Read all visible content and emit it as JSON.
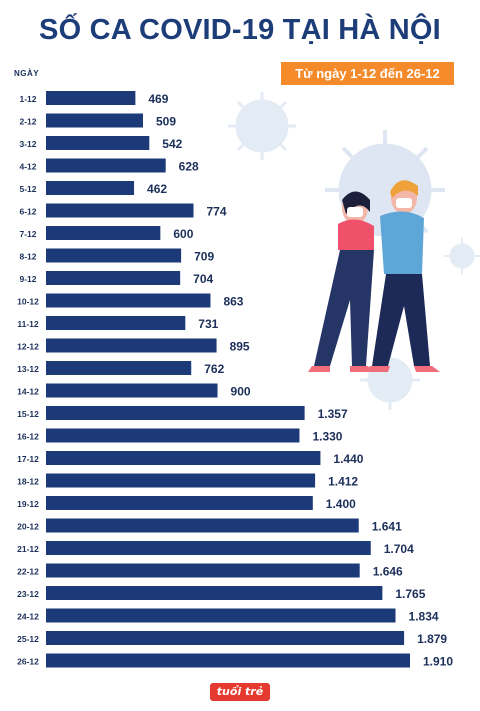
{
  "title": "SỐ CA COVID-19 TẠI HÀ NỘI",
  "badge": "Từ ngày 1-12 đến 26-12",
  "logo": "tuổi trẻ",
  "colors": {
    "bar": "#1d3a78",
    "label": "#1b2f5a",
    "accent": "#f48a2a"
  },
  "chart_data": {
    "type": "bar",
    "orientation": "horizontal",
    "ylabel": "NGÀY",
    "categories": [
      "1-12",
      "2-12",
      "3-12",
      "4-12",
      "5-12",
      "6-12",
      "7-12",
      "8-12",
      "9-12",
      "10-12",
      "11-12",
      "12-12",
      "13-12",
      "14-12",
      "15-12",
      "16-12",
      "17-12",
      "18-12",
      "19-12",
      "20-12",
      "21-12",
      "22-12",
      "23-12",
      "24-12",
      "25-12",
      "26-12"
    ],
    "values": [
      469,
      509,
      542,
      628,
      462,
      774,
      600,
      709,
      704,
      863,
      731,
      895,
      762,
      900,
      1357,
      1330,
      1440,
      1412,
      1400,
      1641,
      1704,
      1646,
      1765,
      1834,
      1879,
      1910
    ],
    "value_labels": [
      "469",
      "509",
      "542",
      "628",
      "462",
      "774",
      "600",
      "709",
      "704",
      "863",
      "731",
      "895",
      "762",
      "900",
      "1.357",
      "1.330",
      "1.440",
      "1.412",
      "1.400",
      "1.641",
      "1.704",
      "1.646",
      "1.765",
      "1.834",
      "1.879",
      "1.910"
    ],
    "grid": false,
    "xlim": [
      0,
      1910
    ]
  }
}
